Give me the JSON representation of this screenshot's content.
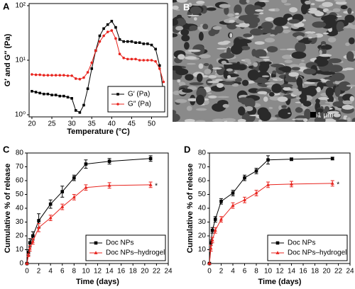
{
  "chart_data": [
    {
      "type": "line",
      "panel": "A",
      "x_label": "Temperature (°C)",
      "y_label": "G′ and G″ (Pa)",
      "log_y": true,
      "xlim": [
        19.3,
        54
      ],
      "xticks": [
        20,
        25,
        30,
        35,
        40,
        45,
        50
      ],
      "ylim": [
        1,
        100
      ],
      "yticks": [
        {
          "value": 1,
          "label": "10⁰"
        },
        {
          "value": 10,
          "label": "10¹"
        },
        {
          "value": 100,
          "label": "10²"
        }
      ],
      "legend": "lower-right",
      "x": [
        20,
        21,
        22,
        23,
        24,
        25,
        26,
        27,
        28,
        29,
        30,
        31,
        32,
        33,
        34,
        35,
        36,
        37,
        38,
        39,
        40,
        41,
        42,
        43,
        44,
        45,
        46,
        47,
        48,
        49,
        50,
        51,
        52,
        53
      ],
      "series": [
        {
          "name": "G′ (Pa)",
          "color": "#000000",
          "marker": "square",
          "values": [
            2.7,
            2.6,
            2.5,
            2.4,
            2.4,
            2.3,
            2.3,
            2.2,
            2.2,
            2.1,
            2.0,
            1.2,
            1.1,
            1.5,
            3,
            7,
            15,
            28,
            38,
            45,
            52,
            40,
            24,
            22,
            22,
            22,
            21,
            21,
            20,
            20,
            19,
            16,
            8,
            2.5
          ]
        },
        {
          "name": "G″ (Pa)",
          "color": "#e8251f",
          "marker": "circle",
          "values": [
            5.5,
            5.4,
            5.4,
            5.3,
            5.3,
            5.3,
            5.3,
            5.3,
            5.3,
            5.2,
            5.2,
            4.6,
            4.5,
            4.8,
            6,
            9,
            15,
            22,
            28,
            33,
            35,
            25,
            13,
            11,
            10.5,
            10.5,
            10.5,
            10,
            10,
            10,
            10,
            9.5,
            7,
            4
          ]
        }
      ]
    },
    {
      "type": "image",
      "panel": "B",
      "scale_bar_label": "1 μm"
    },
    {
      "type": "line",
      "panel": "C",
      "x_label": "Time (days)",
      "y_label": "Cumulative % of release",
      "annotation": "*",
      "xlim": [
        0,
        24
      ],
      "xticks": [
        0,
        2,
        4,
        6,
        8,
        10,
        12,
        14,
        16,
        18,
        20,
        22,
        24
      ],
      "ylim": [
        0,
        80
      ],
      "yticks": [
        0,
        10,
        20,
        30,
        40,
        50,
        60,
        70,
        80
      ],
      "legend": "lower-right",
      "x": [
        0,
        0.25,
        0.5,
        1,
        2,
        4,
        6,
        8,
        10,
        14,
        21
      ],
      "series": [
        {
          "name": "Doc NPs",
          "color": "#000000",
          "marker": "square",
          "values": [
            0,
            8,
            15,
            20,
            31,
            43,
            52,
            62,
            72,
            74,
            76
          ],
          "errors": [
            0,
            2,
            3,
            3,
            5,
            3,
            4,
            2,
            3,
            2,
            2
          ]
        },
        {
          "name": "Doc NPs–hydrogel",
          "color": "#e8251f",
          "marker": "triangle",
          "values": [
            0,
            6,
            11,
            16,
            26,
            33,
            41,
            48,
            55,
            56.5,
            57
          ],
          "errors": [
            0,
            1,
            2,
            2,
            3,
            2,
            2,
            2,
            2,
            2,
            2
          ]
        }
      ]
    },
    {
      "type": "line",
      "panel": "D",
      "x_label": "Time (days)",
      "y_label": "Cumulative % of release",
      "annotation": "*",
      "xlim": [
        0,
        24
      ],
      "xticks": [
        0,
        2,
        4,
        6,
        8,
        10,
        12,
        14,
        16,
        18,
        20,
        22,
        24
      ],
      "ylim": [
        0,
        80
      ],
      "yticks": [
        0,
        10,
        20,
        30,
        40,
        50,
        60,
        70,
        80
      ],
      "legend": "lower-right",
      "x": [
        0,
        0.25,
        0.5,
        1,
        2,
        4,
        6,
        8,
        10,
        14,
        21
      ],
      "series": [
        {
          "name": "Doc NPs",
          "color": "#000000",
          "marker": "square",
          "values": [
            0,
            15,
            24,
            32,
            45,
            51,
            62,
            67,
            75,
            75.5,
            76
          ],
          "errors": [
            0,
            2,
            2,
            2,
            2,
            2,
            2,
            2,
            3,
            1,
            1
          ]
        },
        {
          "name": "Doc NPs–hydrogel",
          "color": "#e8251f",
          "marker": "triangle",
          "values": [
            0,
            11,
            17,
            24,
            32,
            42,
            46,
            51,
            57,
            57.5,
            58
          ],
          "errors": [
            0,
            2,
            2,
            2,
            2,
            2,
            2,
            2,
            2,
            2,
            2
          ]
        }
      ]
    }
  ]
}
